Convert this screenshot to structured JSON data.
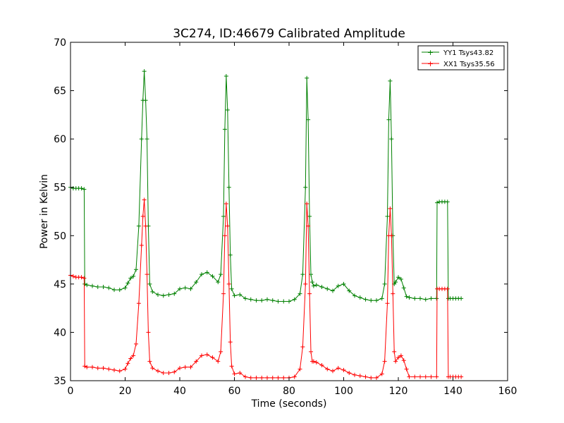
{
  "chart_data": {
    "type": "line",
    "title": "3C274, ID:46679 Calibrated Amplitude",
    "xlabel": "Time (seconds)",
    "ylabel": "Power in Kelvin",
    "xlim": [
      0,
      160
    ],
    "ylim": [
      35,
      70
    ],
    "xticks": [
      0,
      20,
      40,
      60,
      80,
      100,
      120,
      140,
      160
    ],
    "yticks": [
      35,
      40,
      45,
      50,
      55,
      60,
      65,
      70
    ],
    "xtick_labels": [
      "0",
      "20",
      "40",
      "60",
      "80",
      "100",
      "120",
      "140",
      "160"
    ],
    "ytick_labels": [
      "35",
      "40",
      "45",
      "50",
      "55",
      "60",
      "65",
      "70"
    ],
    "grid": false,
    "legend_position": "top-right",
    "marker": "+",
    "series": [
      {
        "name": "YY1 Tsys43.82",
        "color": "#008000",
        "x": [
          0,
          1,
          2,
          3,
          4,
          5,
          5.2,
          6,
          8,
          10,
          12,
          14,
          16,
          18,
          20,
          21,
          22,
          23,
          24,
          25,
          26,
          26.5,
          27,
          27.5,
          28,
          28.5,
          29,
          30,
          32,
          34,
          36,
          38,
          40,
          42,
          44,
          46,
          48,
          50,
          52,
          54,
          55,
          56,
          56.5,
          57,
          57.5,
          58,
          58.5,
          59,
          60,
          62,
          64,
          66,
          68,
          70,
          72,
          74,
          76,
          78,
          80,
          82,
          84,
          85,
          86,
          86.5,
          87,
          87.5,
          88,
          88.5,
          89,
          90,
          92,
          94,
          96,
          98,
          100,
          102,
          104,
          106,
          108,
          110,
          112,
          114,
          115,
          116,
          116.5,
          117,
          117.5,
          118,
          118.5,
          119,
          120,
          121,
          122,
          123,
          124,
          126,
          128,
          130,
          132,
          134,
          134.2,
          135,
          136,
          137,
          138,
          138.3,
          139,
          140,
          141,
          142,
          143
        ],
        "y": [
          55,
          54.9,
          54.9,
          54.9,
          54.9,
          54.8,
          45,
          44.9,
          44.8,
          44.7,
          44.7,
          44.6,
          44.4,
          44.4,
          44.6,
          45.1,
          45.6,
          45.8,
          46.5,
          51,
          60,
          64,
          67,
          64,
          60,
          51,
          45,
          44.2,
          43.9,
          43.8,
          43.9,
          44,
          44.5,
          44.6,
          44.5,
          45.2,
          46,
          46.2,
          45.8,
          45.2,
          46,
          52,
          61,
          66.5,
          63,
          55,
          48,
          44.5,
          43.8,
          43.9,
          43.5,
          43.4,
          43.3,
          43.3,
          43.4,
          43.3,
          43.2,
          43.2,
          43.2,
          43.4,
          44,
          46,
          55,
          66.3,
          62,
          52,
          46,
          45.2,
          44.8,
          44.9,
          44.7,
          44.5,
          44.3,
          44.8,
          45,
          44.3,
          43.8,
          43.6,
          43.4,
          43.3,
          43.3,
          43.5,
          45,
          52,
          62,
          66,
          60,
          50,
          45,
          45.2,
          45.7,
          45.5,
          44.6,
          43.7,
          43.6,
          43.5,
          43.5,
          43.4,
          43.5,
          43.5,
          53.4,
          53.5,
          53.5,
          53.5,
          53.5,
          43.5,
          43.5,
          43.5,
          43.5,
          43.5,
          43.5
        ]
      },
      {
        "name": "XX1 Tsys35.56",
        "color": "#ff0000",
        "x": [
          0,
          1,
          2,
          3,
          4,
          5,
          5.2,
          6,
          8,
          10,
          12,
          14,
          16,
          18,
          20,
          21,
          22,
          23,
          24,
          25,
          26,
          26.5,
          27,
          27.5,
          28,
          28.5,
          29,
          30,
          32,
          34,
          36,
          38,
          40,
          42,
          44,
          46,
          48,
          50,
          52,
          54,
          55,
          56,
          56.5,
          57,
          57.5,
          58,
          58.5,
          59,
          60,
          62,
          64,
          66,
          68,
          70,
          72,
          74,
          76,
          78,
          80,
          82,
          84,
          85,
          86,
          86.5,
          87,
          87.5,
          88,
          88.5,
          89,
          90,
          92,
          94,
          96,
          98,
          100,
          102,
          104,
          106,
          108,
          110,
          112,
          114,
          115,
          116,
          116.5,
          117,
          117.5,
          118,
          118.5,
          119,
          120,
          121,
          122,
          123,
          124,
          126,
          128,
          130,
          132,
          134,
          134.2,
          135,
          136,
          137,
          138,
          138.3,
          139,
          140,
          141,
          142,
          143
        ],
        "y": [
          45.9,
          45.8,
          45.7,
          45.7,
          45.7,
          45.6,
          36.5,
          36.4,
          36.4,
          36.3,
          36.3,
          36.2,
          36.1,
          36,
          36.2,
          36.8,
          37.3,
          37.6,
          38.8,
          43,
          49,
          52,
          53.7,
          51,
          46,
          40,
          37,
          36.3,
          36,
          35.8,
          35.8,
          35.9,
          36.3,
          36.4,
          36.4,
          37,
          37.6,
          37.7,
          37.4,
          37,
          38,
          44,
          50,
          53.3,
          51,
          45,
          39,
          36.5,
          35.7,
          35.8,
          35.4,
          35.3,
          35.3,
          35.3,
          35.3,
          35.3,
          35.3,
          35.3,
          35.3,
          35.4,
          36.2,
          38.5,
          45,
          53.3,
          51,
          44,
          38,
          37,
          37,
          36.9,
          36.6,
          36.2,
          36,
          36.3,
          36.1,
          35.8,
          35.6,
          35.5,
          35.4,
          35.3,
          35.3,
          35.7,
          37,
          43,
          50,
          52.8,
          50,
          44,
          38,
          37,
          37.4,
          37.6,
          37.1,
          36.2,
          35.4,
          35.4,
          35.4,
          35.4,
          35.4,
          35.4,
          44.5,
          44.5,
          44.5,
          44.5,
          44.5,
          35.4,
          35.4,
          35.4,
          35.4,
          35.4,
          35.4
        ]
      }
    ]
  }
}
